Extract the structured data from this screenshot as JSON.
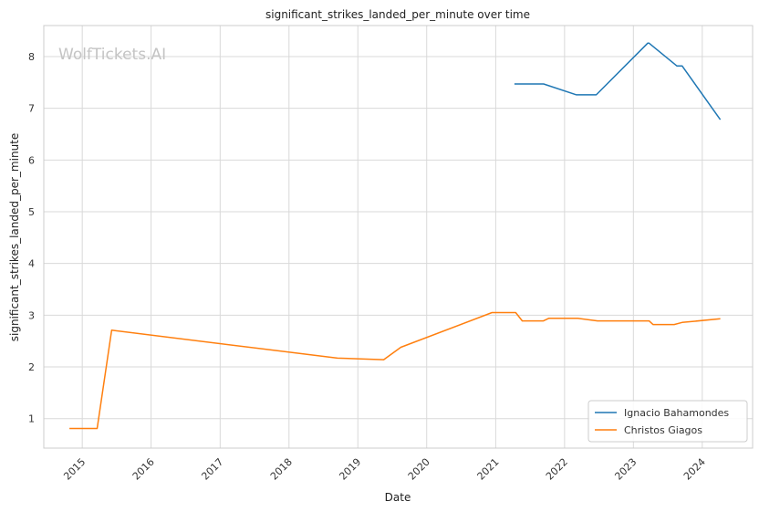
{
  "chart_data": {
    "type": "line",
    "title": "significant_strikes_landed_per_minute over time",
    "xlabel": "Date",
    "ylabel": "significant_strikes_landed_per_minute",
    "watermark": "WolfTickets.AI",
    "x_ticks": [
      "2015",
      "2016",
      "2017",
      "2018",
      "2019",
      "2020",
      "2021",
      "2022",
      "2023",
      "2024"
    ],
    "y_ticks": [
      "1",
      "2",
      "3",
      "4",
      "5",
      "6",
      "7",
      "8"
    ],
    "xlim": [
      "2014-06-11",
      "2024-09-24"
    ],
    "ylim": [
      0.43,
      8.6
    ],
    "grid": true,
    "legend_position": "lower right",
    "series": [
      {
        "name": "Ignacio Bahamondes",
        "color": "#1f77b4",
        "points": [
          [
            "2021-04-10",
            7.47
          ],
          [
            "2021-09-12",
            7.47
          ],
          [
            "2022-03-05",
            7.26
          ],
          [
            "2022-06-18",
            7.26
          ],
          [
            "2023-03-18",
            8.26
          ],
          [
            "2023-03-25",
            8.26
          ],
          [
            "2023-08-19",
            7.82
          ],
          [
            "2023-09-16",
            7.82
          ],
          [
            "2024-04-06",
            6.78
          ]
        ]
      },
      {
        "name": "Christos Giagos",
        "color": "#ff7f0e",
        "points": [
          [
            "2014-10-25",
            0.81
          ],
          [
            "2015-03-21",
            0.81
          ],
          [
            "2015-06-06",
            2.71
          ],
          [
            "2018-09-15",
            2.17
          ],
          [
            "2019-05-18",
            2.14
          ],
          [
            "2019-08-17",
            2.38
          ],
          [
            "2020-12-12",
            3.05
          ],
          [
            "2021-04-17",
            3.05
          ],
          [
            "2021-05-22",
            2.89
          ],
          [
            "2021-09-11",
            2.89
          ],
          [
            "2021-10-09",
            2.94
          ],
          [
            "2022-03-12",
            2.94
          ],
          [
            "2022-06-25",
            2.89
          ],
          [
            "2023-03-25",
            2.89
          ],
          [
            "2023-04-15",
            2.82
          ],
          [
            "2023-08-05",
            2.82
          ],
          [
            "2023-09-16",
            2.86
          ],
          [
            "2024-04-06",
            2.93
          ]
        ]
      }
    ]
  }
}
